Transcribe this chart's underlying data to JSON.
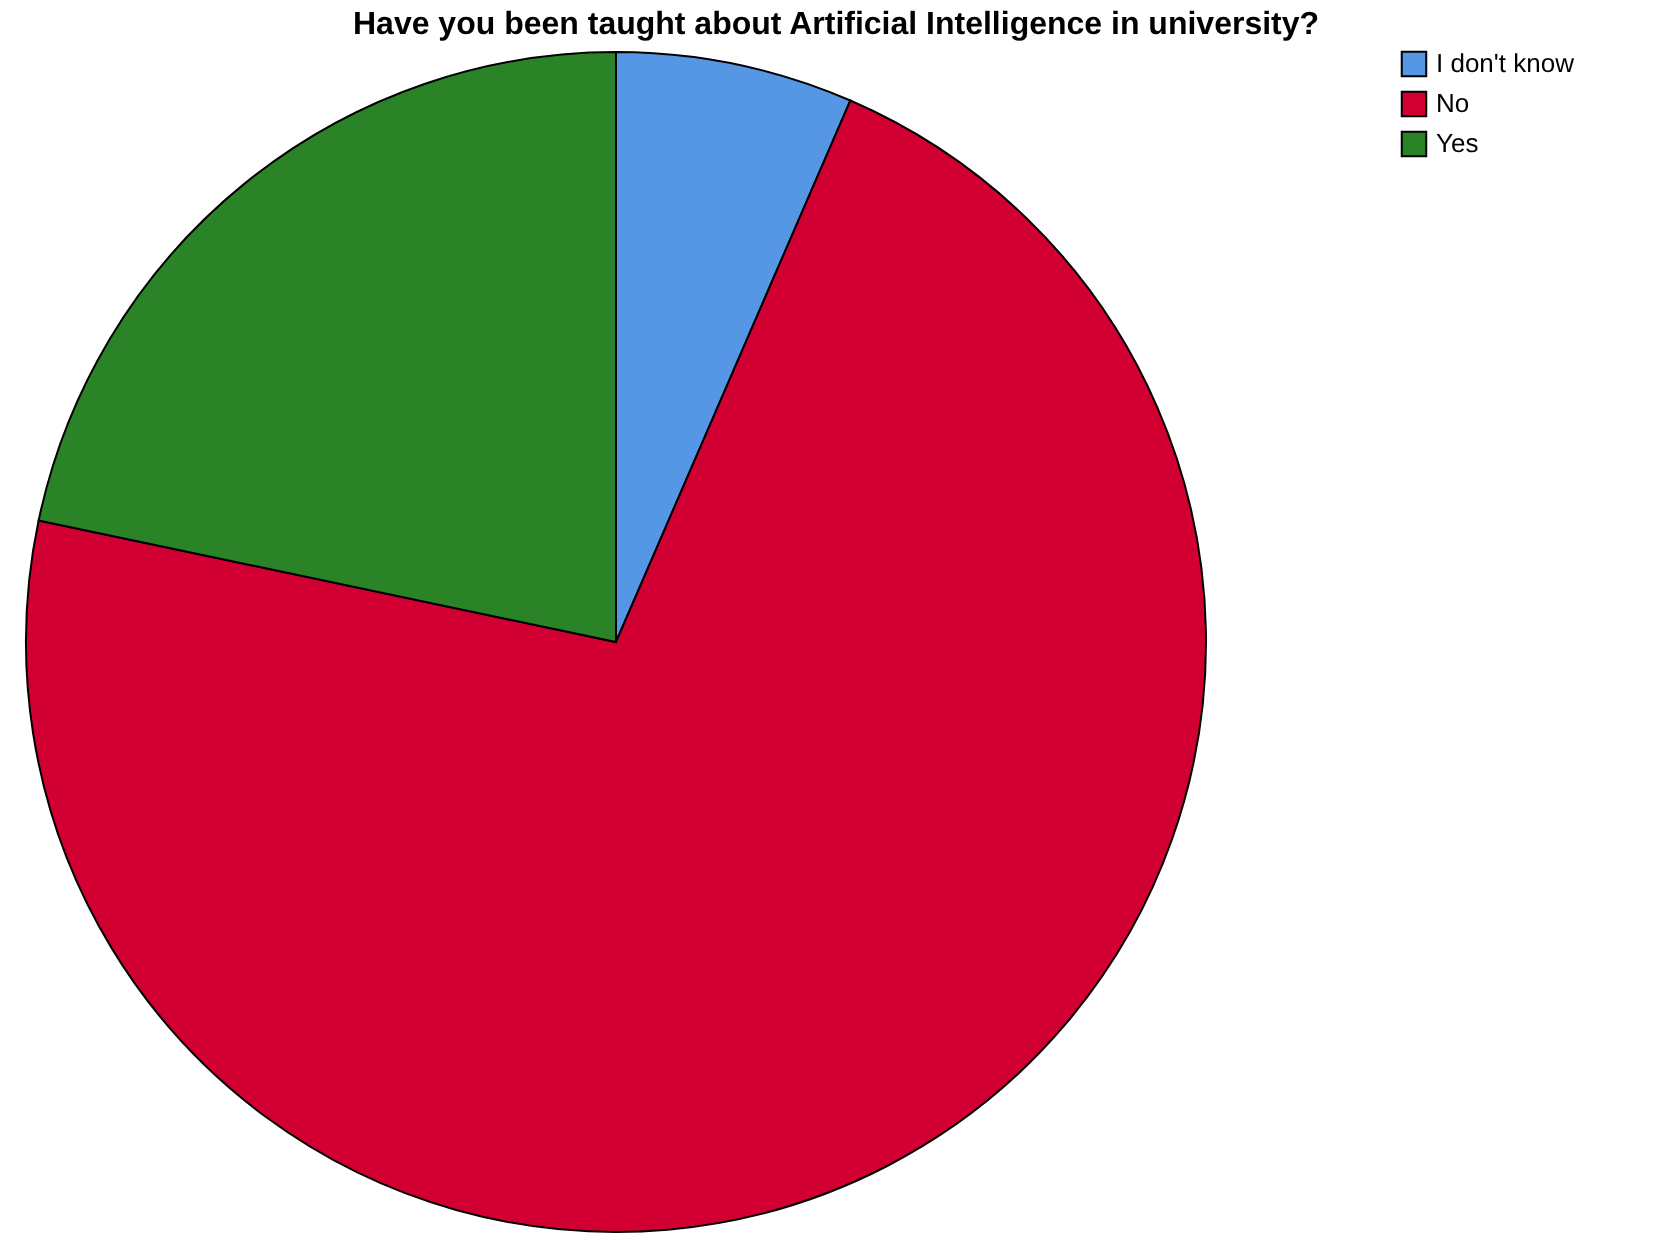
{
  "chart_data": {
    "type": "pie",
    "title": "Have you been taught about Artificial Intelligence in university?",
    "categories": [
      "I don't know",
      "No",
      "Yes"
    ],
    "values": [
      6.5,
      71.8,
      21.7
    ],
    "colors": [
      "#5597e5",
      "#d20032",
      "#2a8427"
    ],
    "legend": "top right"
  }
}
